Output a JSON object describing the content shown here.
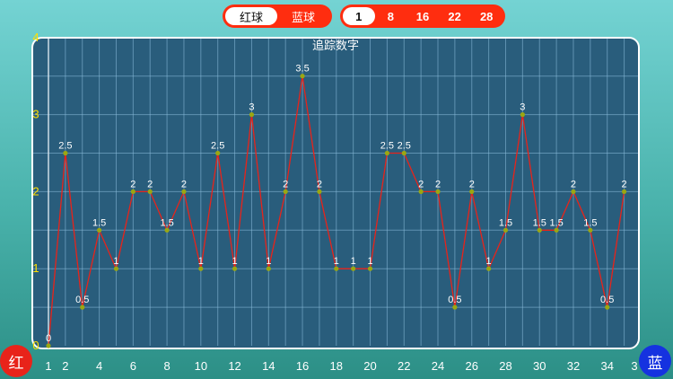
{
  "ball_toggle": {
    "options": [
      "红球",
      "蓝球"
    ],
    "selected": 0
  },
  "range_toggle": {
    "options": [
      "1",
      "8",
      "16",
      "22",
      "28"
    ],
    "selected": 0
  },
  "red_button": "红",
  "blue_button": "蓝",
  "colors": {
    "accent": "#ff2d0f",
    "line": "#e8231a",
    "point": "#9aa712",
    "panel": "#295d7c"
  },
  "chart_data": {
    "type": "line",
    "title": "追踪数字",
    "x": [
      1,
      2,
      3,
      4,
      5,
      6,
      7,
      8,
      9,
      10,
      11,
      12,
      13,
      14,
      15,
      16,
      17,
      18,
      19,
      20,
      21,
      22,
      23,
      24,
      25,
      26,
      27,
      28,
      29,
      30,
      31,
      32,
      33,
      34,
      35
    ],
    "x_tick_labels": [
      "1",
      "2",
      "4",
      "6",
      "8",
      "10",
      "12",
      "14",
      "16",
      "18",
      "20",
      "22",
      "24",
      "26",
      "28",
      "30",
      "32",
      "34",
      "3"
    ],
    "y_tick_labels": [
      "0",
      "1",
      "2",
      "3",
      "4"
    ],
    "values": [
      0,
      2.5,
      0.5,
      1.5,
      1,
      2,
      2,
      1.5,
      2,
      1,
      2.5,
      1,
      3,
      1,
      2,
      3.5,
      2,
      1,
      1,
      1,
      2.5,
      2.5,
      2,
      2,
      0.5,
      2,
      1,
      1.5,
      3,
      1.5,
      1.5,
      2,
      1.5,
      0.5,
      2
    ],
    "point_labels": [
      "0",
      "2.5",
      "0.5",
      "1.5",
      "1",
      "2",
      "2",
      "1.5",
      "2",
      "1",
      "2.5",
      "1",
      "3",
      "1",
      "2",
      "3.5",
      "2",
      "1",
      "1",
      "1",
      "2.5",
      "2.5",
      "2",
      "2",
      "0.5",
      "2",
      "1",
      "1.5",
      "3",
      "1.5",
      "1.5",
      "2",
      "1.5",
      "0.5",
      "2"
    ],
    "ylim": [
      0,
      4
    ],
    "grid": true
  }
}
